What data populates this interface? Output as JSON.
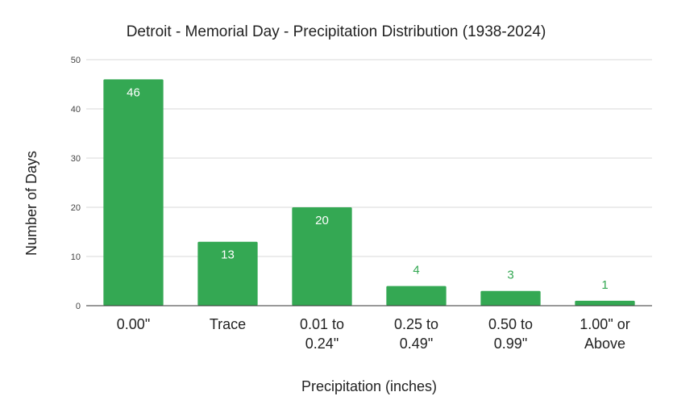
{
  "chart_data": {
    "type": "bar",
    "title": "Detroit - Memorial Day - Precipitation Distribution (1938-2024)",
    "xlabel": "Precipitation (inches)",
    "ylabel": "Number of Days",
    "categories": [
      [
        "0.00\""
      ],
      [
        "Trace"
      ],
      [
        "0.01 to",
        "0.24\""
      ],
      [
        "0.25 to",
        "0.49\""
      ],
      [
        "0.50 to",
        "0.99\""
      ],
      [
        "1.00\" or",
        "Above"
      ]
    ],
    "values": [
      46,
      13,
      20,
      4,
      3,
      1
    ],
    "ylim": [
      0,
      50
    ],
    "yticks": [
      0,
      10,
      20,
      30,
      40,
      50
    ],
    "grid": true,
    "legend": "none",
    "colors": {
      "bar": "#34a853",
      "label_inside": "#ffffff",
      "label_outside": "#34a853",
      "grid": "#d9d9d9",
      "axis": "#333333"
    }
  }
}
